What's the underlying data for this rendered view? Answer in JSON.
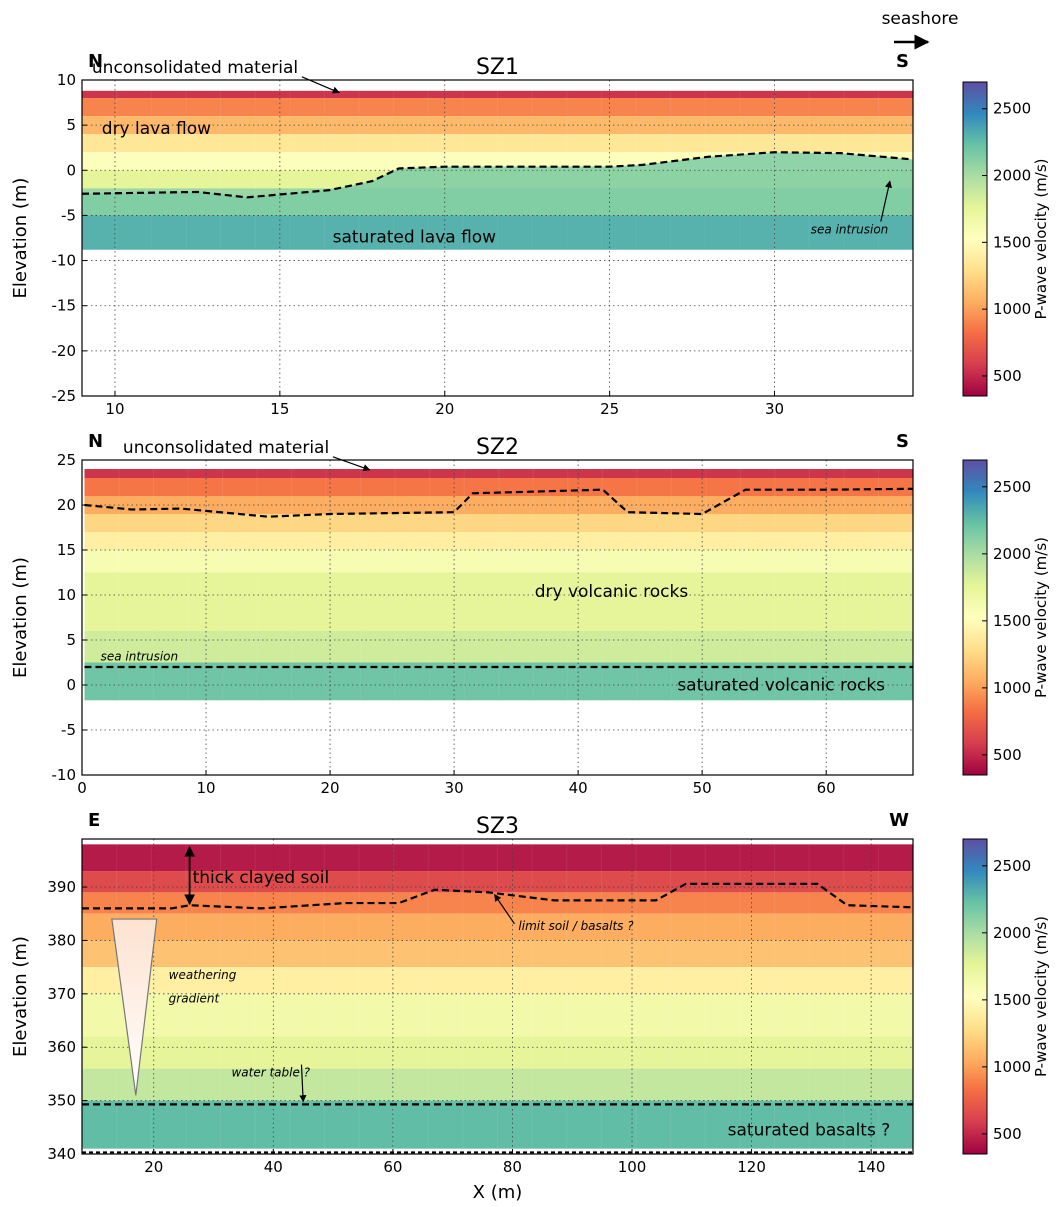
{
  "header": {
    "seashore_label": "seashore"
  },
  "colorbar": {
    "label": "P-wave velocity (m/s)",
    "ticks": [
      500,
      1000,
      1500,
      2000,
      2500
    ],
    "range": [
      350,
      2700
    ],
    "colors": [
      "#9e0142",
      "#d53e4f",
      "#f46d43",
      "#fdae61",
      "#fee08b",
      "#ffffbf",
      "#e6f598",
      "#abdda4",
      "#66c2a5",
      "#3288bd",
      "#5e4fa2"
    ]
  },
  "chart_data": [
    {
      "type": "heatmap",
      "title": "SZ1",
      "left_label": "N",
      "right_label": "S",
      "ylabel": "Elevation (m)",
      "xlabel": "",
      "xlim": [
        9,
        34.2
      ],
      "ylim": [
        -25,
        10
      ],
      "xticks": [
        10,
        15,
        20,
        25,
        30
      ],
      "yticks": [
        -25,
        -20,
        -15,
        -10,
        -5,
        0,
        5,
        10
      ],
      "grid": true,
      "model_x": [
        9,
        34.2
      ],
      "model_top": 8.8,
      "model_bottom": -8.8,
      "layers": [
        {
          "top": 8.8,
          "bottom": 8.0,
          "velocity": 550
        },
        {
          "top": 8.0,
          "bottom": 6.0,
          "velocity": 900
        },
        {
          "top": 6.0,
          "bottom": 4.0,
          "velocity": 1100
        },
        {
          "top": 4.0,
          "bottom": 2.0,
          "velocity": 1350
        },
        {
          "top": 2.0,
          "bottom": 0.0,
          "velocity": 1550
        },
        {
          "top": 0.0,
          "bottom": -2.0,
          "velocity": 1750
        },
        {
          "top": -2.0,
          "bottom": -5.0,
          "velocity": 2050
        },
        {
          "top": -5.0,
          "bottom": -8.8,
          "velocity": 2300
        }
      ],
      "boundary": {
        "x": [
          9,
          12.5,
          14,
          16.5,
          17.8,
          18.6,
          20,
          25,
          26,
          28,
          30,
          32,
          34.2
        ],
        "y": [
          -2.6,
          -2.4,
          -3.0,
          -2.2,
          -1.2,
          0.2,
          0.4,
          0.4,
          0.6,
          1.5,
          2.0,
          1.9,
          1.2
        ],
        "below_velocity": 2150
      },
      "annotations": [
        {
          "text": "unconsolidated material",
          "x": 9.3,
          "y": 10.8,
          "style": "normal",
          "arrow_to": [
            16.8,
            8.6
          ]
        },
        {
          "text": "dry lava flow",
          "x": 9.6,
          "y": 4.0,
          "style": "normal"
        },
        {
          "text": "saturated lava flow",
          "x": 16.6,
          "y": -8.0,
          "style": "normal",
          "color": "#000000"
        },
        {
          "text": "sea intrusion",
          "x": 31.1,
          "y": -7.0,
          "style": "italic",
          "arrow_to": [
            33.5,
            -1.2
          ]
        }
      ]
    },
    {
      "type": "heatmap",
      "title": "SZ2",
      "left_label": "N",
      "right_label": "S",
      "ylabel": "Elevation (m)",
      "xlabel": "",
      "xlim": [
        0,
        67
      ],
      "ylim": [
        -10,
        25
      ],
      "xticks": [
        0,
        10,
        20,
        30,
        40,
        50,
        60
      ],
      "yticks": [
        -10,
        -5,
        0,
        5,
        10,
        15,
        20,
        25
      ],
      "grid": true,
      "model_x": [
        0.2,
        67
      ],
      "model_top": 24.0,
      "model_bottom": -1.7,
      "layers": [
        {
          "top": 24.0,
          "bottom": 23.0,
          "velocity": 550
        },
        {
          "top": 23.0,
          "bottom": 21.0,
          "velocity": 850
        },
        {
          "top": 21.0,
          "bottom": 19.0,
          "velocity": 1050
        },
        {
          "top": 19.0,
          "bottom": 17.0,
          "velocity": 1250
        },
        {
          "top": 17.0,
          "bottom": 15.0,
          "velocity": 1400
        },
        {
          "top": 15.0,
          "bottom": 12.5,
          "velocity": 1600
        },
        {
          "top": 12.5,
          "bottom": 6.0,
          "velocity": 1750
        },
        {
          "top": 6.0,
          "bottom": 2.5,
          "velocity": 1850
        },
        {
          "top": 2.5,
          "bottom": -1.7,
          "velocity": 2200
        }
      ],
      "boundary": {
        "x": [
          0.2,
          4,
          8,
          15,
          20,
          30,
          31.5,
          42,
          44,
          50,
          53.5,
          60,
          67
        ],
        "y": [
          20.0,
          19.5,
          19.6,
          18.7,
          19.0,
          19.2,
          21.3,
          21.7,
          19.2,
          19.0,
          21.7,
          21.7,
          21.8
        ],
        "below_velocity": null
      },
      "water_line": {
        "y": 2.0,
        "x": [
          0.2,
          67
        ]
      },
      "annotations": [
        {
          "text": "unconsolidated material",
          "x": 3.3,
          "y": 25.8,
          "style": "normal",
          "arrow_to": [
            23.2,
            23.9
          ]
        },
        {
          "text": "dry volcanic rocks",
          "x": 36.5,
          "y": 9.8,
          "style": "normal"
        },
        {
          "text": "sea intrusion",
          "x": 1.5,
          "y": 2.7,
          "style": "italic"
        },
        {
          "text": "saturated volcanic rocks",
          "x": 48,
          "y": -0.6,
          "style": "normal",
          "color": "#000000"
        }
      ]
    },
    {
      "type": "heatmap",
      "title": "SZ3",
      "left_label": "E",
      "right_label": "W",
      "ylabel": "Elevation (m)",
      "xlabel": "X (m)",
      "xlim": [
        8,
        147
      ],
      "ylim": [
        340,
        399
      ],
      "xticks": [
        20,
        40,
        60,
        80,
        100,
        120,
        140
      ],
      "yticks": [
        340,
        350,
        360,
        370,
        380,
        390
      ],
      "grid": true,
      "model_x": [
        8,
        147
      ],
      "model_top": 398,
      "model_bottom": 341,
      "layers": [
        {
          "top": 398,
          "bottom": 393,
          "velocity": 450
        },
        {
          "top": 393,
          "bottom": 389,
          "velocity": 650
        },
        {
          "top": 389,
          "bottom": 385,
          "velocity": 900
        },
        {
          "top": 385,
          "bottom": 380,
          "velocity": 1050
        },
        {
          "top": 380,
          "bottom": 375,
          "velocity": 1150
        },
        {
          "top": 375,
          "bottom": 370,
          "velocity": 1400
        },
        {
          "top": 370,
          "bottom": 362,
          "velocity": 1650
        },
        {
          "top": 362,
          "bottom": 356,
          "velocity": 1750
        },
        {
          "top": 356,
          "bottom": 350,
          "velocity": 1900
        },
        {
          "top": 350,
          "bottom": 341,
          "velocity": 2250
        }
      ],
      "boundary": {
        "x": [
          8,
          23,
          26,
          38,
          52,
          61,
          67,
          76,
          87,
          104,
          109,
          131,
          136,
          147
        ],
        "y": [
          386,
          386,
          386.6,
          386,
          387,
          387,
          389.5,
          389,
          387.5,
          387.5,
          390.6,
          390.6,
          386.6,
          386.2
        ],
        "below_velocity": null
      },
      "water_line": {
        "y": 349.3,
        "x": [
          8,
          147
        ]
      },
      "bottom_line": {
        "y": 340.3,
        "x": [
          8,
          147
        ]
      },
      "triangle": {
        "x_left": 13,
        "x_right": 20.5,
        "top": 384,
        "apex_x": 17,
        "apex_y": 351
      },
      "annotations": [
        {
          "text": "thick clayed soil",
          "x": 26.5,
          "y": 390.8,
          "style": "normal",
          "double_arrow": {
            "x": 26,
            "y1": 397.5,
            "y2": 386.8
          }
        },
        {
          "text": "limit soil / basalts ?",
          "x": 81,
          "y": 382,
          "style": "italic",
          "arrow_to": [
            77,
            388.6
          ]
        },
        {
          "text": "weathering",
          "x": 22.5,
          "y": 372.8,
          "style": "italic"
        },
        {
          "text": "gradient",
          "x": 22.5,
          "y": 368.4,
          "style": "italic"
        },
        {
          "text": "water table ?",
          "x": 33,
          "y": 354.5,
          "style": "italic",
          "arrow_to": [
            45,
            349.8
          ]
        },
        {
          "text": "saturated basalts ?",
          "x": 116,
          "y": 343.5,
          "style": "normal",
          "color": "#ffffff"
        }
      ]
    }
  ]
}
